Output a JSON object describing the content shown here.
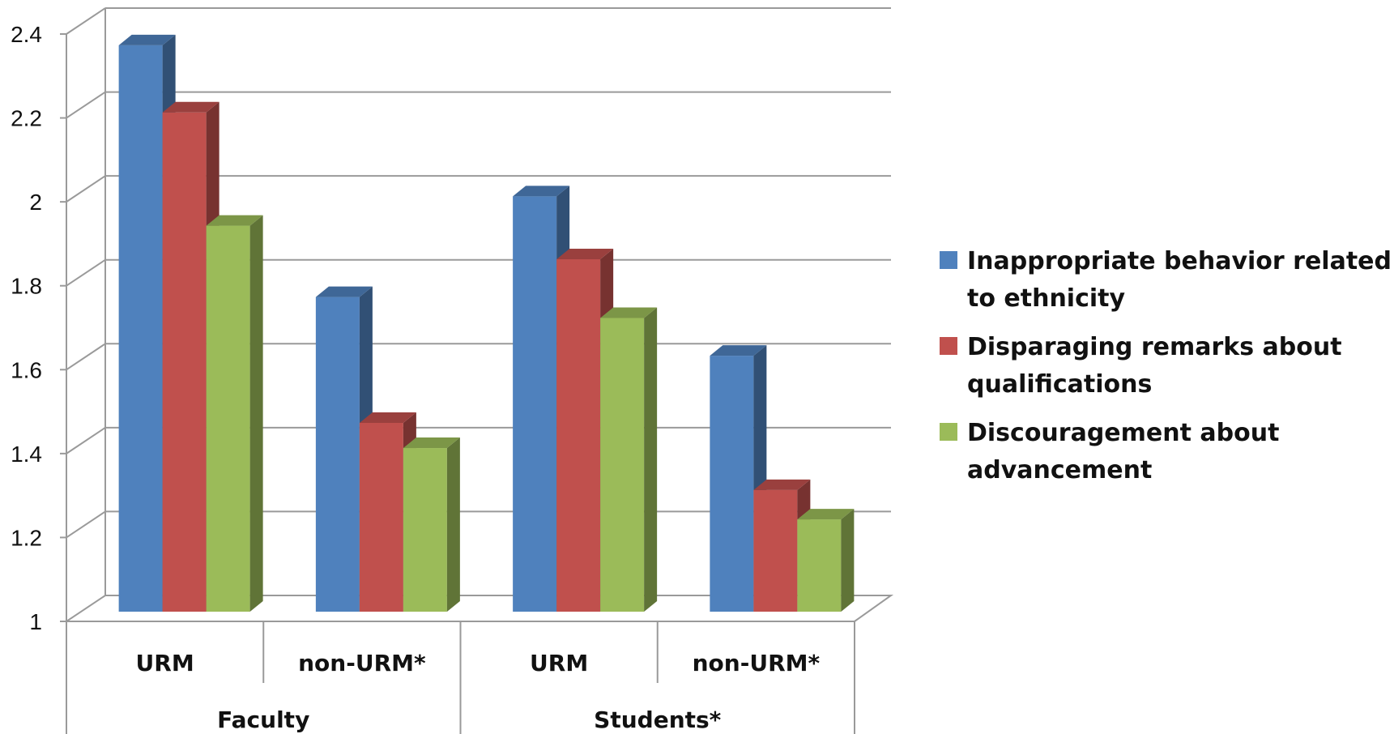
{
  "chart_data": {
    "type": "bar",
    "categories": [
      "URM",
      "non-URM*",
      "URM",
      "non-URM*"
    ],
    "groups": [
      {
        "label": "Faculty",
        "categories": [
          "URM",
          "non-URM*"
        ]
      },
      {
        "label": "Students*",
        "categories": [
          "URM",
          "non-URM*"
        ]
      }
    ],
    "series": [
      {
        "name": "Inappropriate behavior related to ethnicity",
        "color": "#4F81BD",
        "values": [
          2.35,
          1.75,
          1.99,
          1.61
        ]
      },
      {
        "name": "Disparaging remarks about qualifications",
        "color": "#C0504D",
        "values": [
          2.19,
          1.45,
          1.84,
          1.29
        ]
      },
      {
        "name": "Discouragement about advancement",
        "color": "#9BBB59",
        "values": [
          1.92,
          1.39,
          1.7,
          1.22
        ]
      }
    ],
    "ylim": [
      1,
      2.4
    ],
    "yticks": [
      "1",
      "1.2",
      "1.4",
      "1.6",
      "1.8",
      "2",
      "2.2",
      "2.4"
    ],
    "grid": true,
    "legend_position": "right",
    "style": "3d-clustered-column"
  }
}
